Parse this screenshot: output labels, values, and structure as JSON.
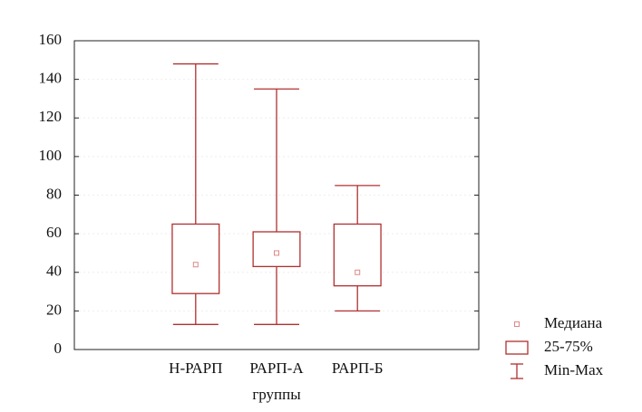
{
  "chart_data": {
    "type": "box",
    "x_label": "группы",
    "categories": [
      "Н-РАРП",
      "РАРП-А",
      "РАРП-Б"
    ],
    "min": [
      13,
      13,
      20
    ],
    "q1": [
      29,
      43,
      33
    ],
    "median": [
      44,
      50,
      40
    ],
    "q3": [
      65,
      61,
      65
    ],
    "max": [
      148,
      135,
      85
    ],
    "legend": [
      "Медиана",
      "25-75%",
      "Min-Max"
    ],
    "color": "#b03030",
    "ylim": [
      0,
      160
    ],
    "yticks": [
      0,
      20,
      40,
      60,
      80,
      100,
      120,
      140,
      160
    ],
    "grid": true
  }
}
